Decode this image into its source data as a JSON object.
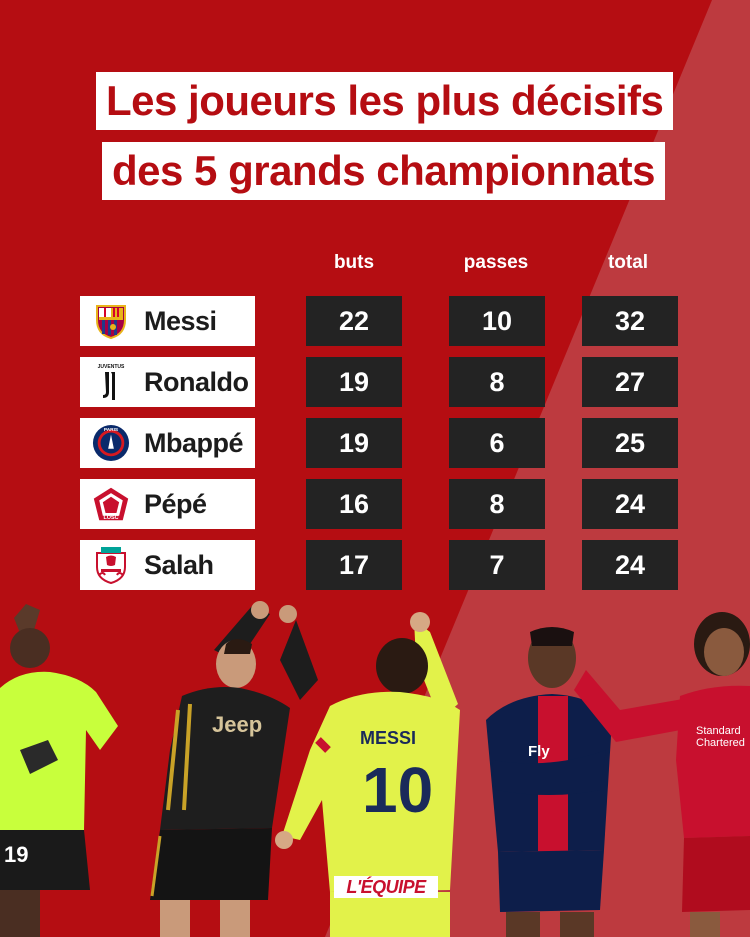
{
  "title": {
    "line1": "Les joueurs les plus décisifs",
    "line2": "des 5 grands championnats"
  },
  "columns": {
    "buts": "buts",
    "passes": "passes",
    "total": "total"
  },
  "rows": [
    {
      "name": "Messi",
      "club": "barcelona-crest-icon",
      "buts": "22",
      "passes": "10",
      "total": "32"
    },
    {
      "name": "Ronaldo",
      "club": "juventus-crest-icon",
      "buts": "19",
      "passes": "8",
      "total": "27"
    },
    {
      "name": "Mbappé",
      "club": "psg-crest-icon",
      "buts": "19",
      "passes": "6",
      "total": "25"
    },
    {
      "name": "Pépé",
      "club": "losc-crest-icon",
      "buts": "16",
      "passes": "8",
      "total": "24"
    },
    {
      "name": "Salah",
      "club": "liverpool-crest-icon",
      "buts": "17",
      "passes": "7",
      "total": "24"
    }
  ],
  "crest_text": {
    "juventus": "JUVENTUS",
    "psg": "PARIS",
    "losc": "LOSC"
  },
  "jerseys": {
    "pepe_number": "19",
    "ronaldo_sponsor": "Jeep",
    "messi_name": "MESSI",
    "messi_number": "10",
    "mbappe_sponsor": "Fly",
    "salah_sponsor_1": "Standard",
    "salah_sponsor_2": "Chartered"
  },
  "brand": "L'ÉQUIPE",
  "colors": {
    "primary_red": "#b50d12",
    "secondary_red": "#bd3a3f",
    "cell_dark": "#232323"
  }
}
